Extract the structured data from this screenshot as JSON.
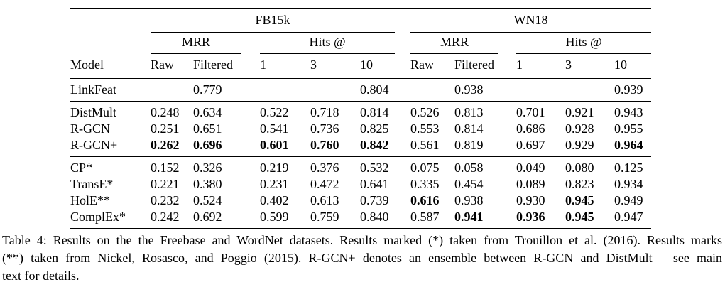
{
  "table": {
    "groups": [
      {
        "label": "FB15k"
      },
      {
        "label": "WN18"
      }
    ],
    "subgroup_labels": {
      "mrr": "MRR",
      "hits": "Hits @"
    },
    "column_headers": {
      "model": "Model",
      "raw": "Raw",
      "filtered": "Filtered",
      "h1": "1",
      "h3": "3",
      "h10": "10"
    },
    "sections": [
      {
        "rows": [
          {
            "model": "LinkFeat",
            "cells": [
              "",
              "0.779",
              "",
              "",
              "0.804",
              "",
              "0.938",
              "",
              "",
              "0.939"
            ]
          }
        ]
      },
      {
        "rows": [
          {
            "model": "DistMult",
            "cells": [
              "0.248",
              "0.634",
              "0.522",
              "0.718",
              "0.814",
              "0.526",
              "0.813",
              "0.701",
              "0.921",
              "0.943"
            ]
          },
          {
            "model": "R-GCN",
            "cells": [
              "0.251",
              "0.651",
              "0.541",
              "0.736",
              "0.825",
              "0.553",
              "0.814",
              "0.686",
              "0.928",
              "0.955"
            ]
          },
          {
            "model": "R-GCN+",
            "cells": [
              {
                "v": "0.262",
                "b": true
              },
              {
                "v": "0.696",
                "b": true
              },
              {
                "v": "0.601",
                "b": true
              },
              {
                "v": "0.760",
                "b": true
              },
              {
                "v": "0.842",
                "b": true
              },
              "0.561",
              "0.819",
              "0.697",
              "0.929",
              {
                "v": "0.964",
                "b": true
              }
            ]
          }
        ]
      },
      {
        "rows": [
          {
            "model": "CP*",
            "cells": [
              "0.152",
              "0.326",
              "0.219",
              "0.376",
              "0.532",
              "0.075",
              "0.058",
              "0.049",
              "0.080",
              "0.125"
            ]
          },
          {
            "model": "TransE*",
            "cells": [
              "0.221",
              "0.380",
              "0.231",
              "0.472",
              "0.641",
              "0.335",
              "0.454",
              "0.089",
              "0.823",
              "0.934"
            ]
          },
          {
            "model": "HolE**",
            "cells": [
              "0.232",
              "0.524",
              "0.402",
              "0.613",
              "0.739",
              {
                "v": "0.616",
                "b": true
              },
              "0.938",
              "0.930",
              {
                "v": "0.945",
                "b": true
              },
              "0.949"
            ]
          },
          {
            "model": "ComplEx*",
            "cells": [
              "0.242",
              "0.692",
              "0.599",
              "0.759",
              "0.840",
              "0.587",
              {
                "v": "0.941",
                "b": true
              },
              {
                "v": "0.936",
                "b": true
              },
              {
                "v": "0.945",
                "b": true
              },
              "0.947"
            ]
          }
        ]
      }
    ]
  },
  "caption": {
    "lines": [
      "Table 4: Results on the the Freebase and WordNet datasets. Results marked (*) taken from Trouillon et al. (2016). Results marks",
      "(**) taken from Nickel, Rosasco, and Poggio (2015). R-GCN+ denotes an ensemble between R-GCN and DistMult – see main",
      "text for details."
    ],
    "full_text": "Table 4: Results on the the Freebase and WordNet datasets. Results marked (*) taken from Trouillon et al. (2016). Results marks (**) taken from Nickel, Rosasco, and Poggio (2015). R-GCN+ denotes an ensemble between R-GCN and DistMult – see main text for details."
  }
}
